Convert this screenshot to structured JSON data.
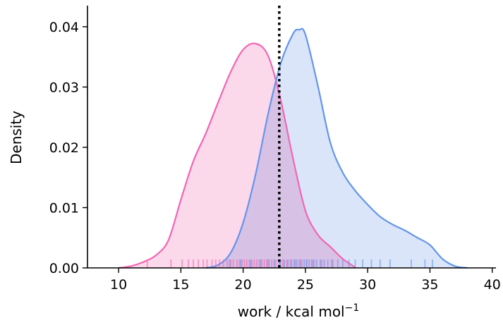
{
  "chart_data": {
    "type": "area",
    "title": "",
    "xlabel": "work / kcal mol",
    "xlabel_superscript": "−1",
    "ylabel": "Density",
    "xlim": [
      7.5,
      40.3
    ],
    "ylim": [
      0,
      0.0435
    ],
    "x_ticks": [
      10,
      15,
      20,
      25,
      30,
      35,
      40
    ],
    "y_ticks": [
      0.0,
      0.01,
      0.02,
      0.03,
      0.04
    ],
    "y_tick_labels": [
      "0.00",
      "0.01",
      "0.02",
      "0.03",
      "0.04"
    ],
    "grid": false,
    "legend": "none",
    "vertical_line": {
      "x": 22.9,
      "style": "dotted",
      "color": "#000000"
    },
    "series": [
      {
        "color": "#f266b3",
        "fill_color": "#fbd1e7",
        "x": [
          10,
          11,
          12,
          13,
          14,
          15,
          16,
          17,
          18,
          19,
          20,
          21,
          22,
          23,
          24,
          25,
          26,
          27,
          28,
          29
        ],
        "y": [
          0.0,
          0.0003,
          0.001,
          0.0021,
          0.0046,
          0.0113,
          0.0177,
          0.0223,
          0.0275,
          0.0325,
          0.0362,
          0.0372,
          0.0352,
          0.028,
          0.0182,
          0.0095,
          0.0055,
          0.0035,
          0.0015,
          0.0001
        ],
        "rug": [
          12.3,
          14.2,
          15.1,
          15.6,
          16.0,
          16.4,
          16.8,
          17.1,
          17.5,
          17.8,
          18.1,
          18.4,
          18.7,
          19.0,
          19.2,
          19.5,
          19.7,
          19.9,
          20.1,
          20.3,
          20.5,
          20.7,
          20.9,
          21.1,
          21.3,
          21.5,
          21.7,
          21.9,
          22.1,
          22.3,
          22.6,
          22.9,
          23.2,
          23.5,
          23.8,
          24.2,
          24.6,
          25.1,
          25.6,
          26.3,
          27.1
        ]
      },
      {
        "color": "#6495ed",
        "fill_color": "#d3e1f8",
        "x": [
          17,
          18,
          19,
          20,
          21,
          22,
          23,
          24,
          24.5,
          25,
          26,
          27,
          28,
          29,
          30,
          31,
          32,
          33,
          34,
          35,
          36,
          37,
          38
        ],
        "y": [
          0.0,
          0.0005,
          0.0025,
          0.0075,
          0.0155,
          0.0255,
          0.0338,
          0.0388,
          0.0395,
          0.0387,
          0.0302,
          0.0208,
          0.0158,
          0.0128,
          0.0105,
          0.0085,
          0.0072,
          0.0062,
          0.005,
          0.0038,
          0.0015,
          0.0003,
          0.0
        ]
      }
    ],
    "blue_rug": [
      18.9,
      19.8,
      20.6,
      21.4,
      22.0,
      22.5,
      23.0,
      23.3,
      23.6,
      23.9,
      24.1,
      24.3,
      24.5,
      24.7,
      24.9,
      25.1,
      25.3,
      25.5,
      25.7,
      25.9,
      26.2,
      26.5,
      26.8,
      27.2,
      27.6,
      28.0,
      28.5,
      29.0,
      29.6,
      30.3,
      31.0,
      31.8,
      33.5,
      34.6,
      35.2
    ]
  }
}
